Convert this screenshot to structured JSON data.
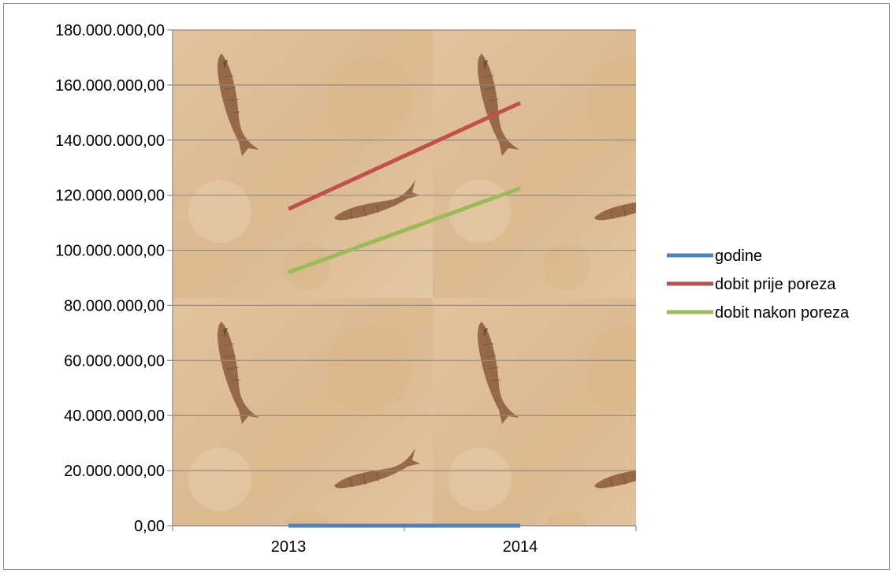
{
  "chart_data": {
    "type": "line",
    "categories": [
      "2013",
      "2014"
    ],
    "series": [
      {
        "name": "godine",
        "values": [
          2013,
          2014
        ],
        "color": "#4f81bd"
      },
      {
        "name": "dobit prije poreza",
        "values": [
          115000000,
          153500000
        ],
        "color": "#c0504d"
      },
      {
        "name": "dobit nakon poreza",
        "values": [
          92000000,
          122500000
        ],
        "color": "#9bbb59"
      }
    ],
    "ylim": [
      0,
      180000000
    ],
    "y_ticks": [
      "0,00",
      "20.000.000,00",
      "40.000.000,00",
      "60.000.000,00",
      "80.000.000,00",
      "100.000.000,00",
      "120.000.000,00",
      "140.000.000,00",
      "160.000.000,00",
      "180.000.000,00"
    ],
    "grid": true,
    "legend": "right",
    "plot_background": "fossil-fish stone texture"
  }
}
